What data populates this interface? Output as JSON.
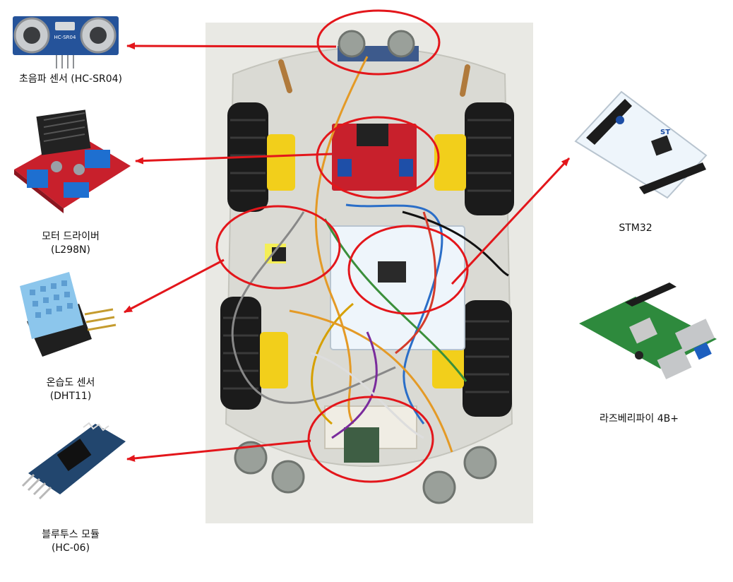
{
  "labels": {
    "ultrasonic": "초음파 센서 (HC-SR04)",
    "motor_driver_line1": "모터 드라이버",
    "motor_driver_line2": "(L298N)",
    "dht_line1": "온습도 센서",
    "dht_line2": "(DHT11)",
    "bluetooth_line1": "블루투스 모듈",
    "bluetooth_line2": "(HC-06)",
    "stm32": "STM32",
    "raspberry": "라즈베리파이 4B+"
  },
  "module_texts": {
    "hcsr04_print": "HC-SR04",
    "stm_logo": "ST"
  },
  "colors": {
    "callout_red": "#e3161b",
    "car_photo_bg": "#e9e9e4",
    "wheel": "#1b1b1b",
    "gear_motor_yellow": "#f2cf1b",
    "l298n_red": "#c8202c",
    "stm32_board": "#eef5fb",
    "rpi_green": "#2e8a3d",
    "dht_blue": "#8cc6ec",
    "hc06_blue": "#22466e"
  }
}
